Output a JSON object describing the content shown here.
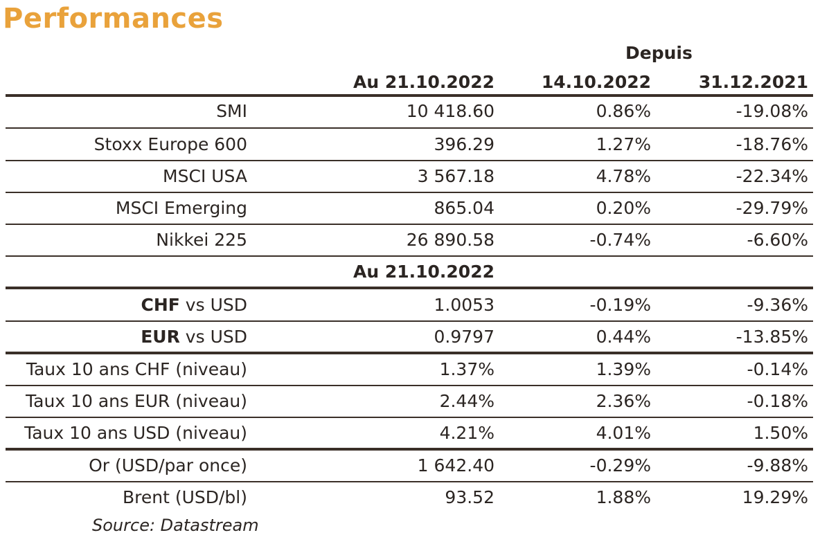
{
  "title": "Performances",
  "header": {
    "group_label": "Depuis",
    "col_current": "Au 21.10.2022",
    "col_week": "14.10.2022",
    "col_ytd": "31.12.2021"
  },
  "indices": [
    {
      "name": "SMI",
      "value": "10 418.60",
      "week": "0.86%",
      "ytd": "-19.08%"
    },
    {
      "name": "Stoxx Europe 600",
      "value": "396.29",
      "week": "1.27%",
      "ytd": "-18.76%"
    },
    {
      "name": "MSCI USA",
      "value": "3 567.18",
      "week": "4.78%",
      "ytd": "-22.34%"
    },
    {
      "name": "MSCI Emerging",
      "value": "865.04",
      "week": "0.20%",
      "ytd": "-29.79%"
    },
    {
      "name": "Nikkei 225",
      "value": "26 890.58",
      "week": "-0.74%",
      "ytd": "-6.60%"
    }
  ],
  "subheader": "Au 21.10.2022",
  "currencies": [
    {
      "bold": "CHF",
      "rest": " vs USD",
      "value": "1.0053",
      "week": "-0.19%",
      "ytd": "-9.36%"
    },
    {
      "bold": "EUR",
      "rest": " vs USD",
      "value": "0.9797",
      "week": "0.44%",
      "ytd": "-13.85%"
    }
  ],
  "rates": [
    {
      "name": "Taux 10 ans CHF (niveau)",
      "value": "1.37%",
      "week": "1.39%",
      "ytd": "-0.14%"
    },
    {
      "name": "Taux 10 ans EUR (niveau)",
      "value": "2.44%",
      "week": "2.36%",
      "ytd": "-0.18%"
    },
    {
      "name": "Taux 10 ans USD (niveau)",
      "value": "4.21%",
      "week": "4.01%",
      "ytd": "1.50%"
    }
  ],
  "commodities": [
    {
      "name": "Or (USD/par once)",
      "value": "1 642.40",
      "week": "-0.29%",
      "ytd": "-9.88%"
    },
    {
      "name": "Brent (USD/bl)",
      "value": "93.52",
      "week": "1.88%",
      "ytd": "19.29%"
    }
  ],
  "source": "Source: Datastream"
}
